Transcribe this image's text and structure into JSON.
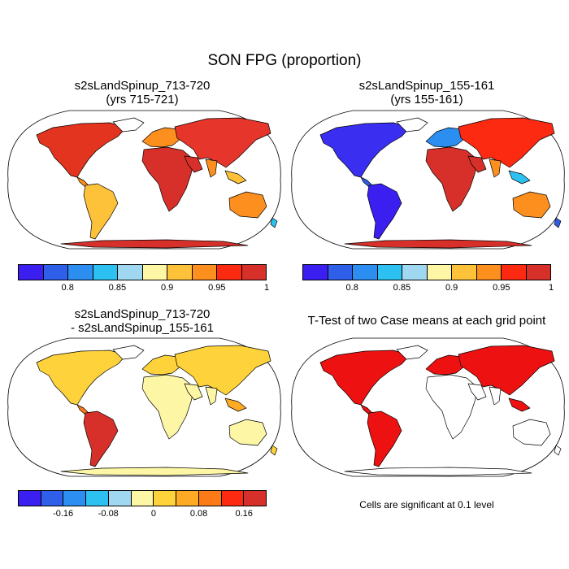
{
  "figure": {
    "title": "SON FPG (proportion)"
  },
  "panels": [
    {
      "title_line1": "s2sLandSpinup_713-720",
      "title_line2": "(yrs 715-721)",
      "fill_scheme": "absolute_a"
    },
    {
      "title_line1": "s2sLandSpinup_155-161",
      "title_line2": "(yrs 155-161)",
      "fill_scheme": "absolute_b"
    },
    {
      "title_line1": "s2sLandSpinup_713-720",
      "title_line2": "- s2sLandSpinup_155-161",
      "fill_scheme": "difference"
    },
    {
      "title_line1": "T-Test of two Case means at each grid point",
      "title_line2": "",
      "fill_scheme": "significance"
    }
  ],
  "colorbars": {
    "absolute": {
      "colors": [
        "#3a1ff0",
        "#2f5fe8",
        "#2b8ef0",
        "#2cc1f0",
        "#9fd8f0",
        "#fdf6a4",
        "#fdc13a",
        "#fd8f1e",
        "#fb2a10",
        "#d7302a"
      ],
      "tick_labels": [
        "0.8",
        "0.85",
        "0.9",
        "0.95",
        "1"
      ]
    },
    "difference": {
      "colors": [
        "#3a1ff0",
        "#2f5fe8",
        "#2b8ef0",
        "#2cc1f0",
        "#9fd8f0",
        "#fdf6a4",
        "#fdd23a",
        "#fdaa24",
        "#fd7a18",
        "#fb2a10",
        "#d7302a"
      ],
      "tick_labels": [
        "-0.16",
        "-0.08",
        "0",
        "0.08",
        "0.16"
      ]
    }
  },
  "significance_note": "Cells are significant at 0.1 level"
}
